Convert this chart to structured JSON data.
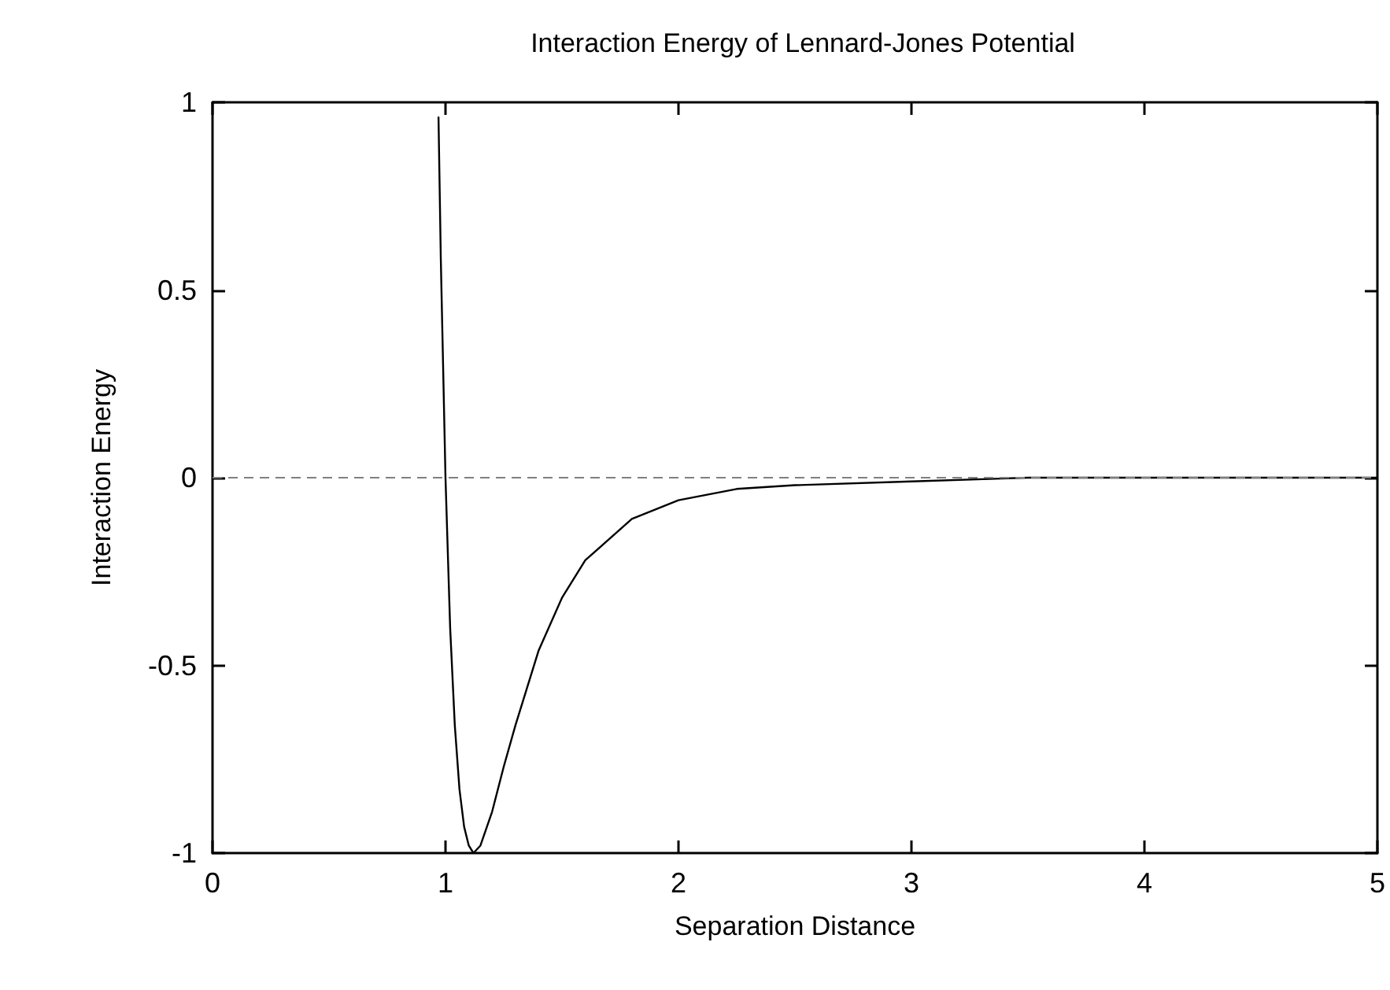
{
  "chart_data": {
    "type": "line",
    "title": "Interaction Energy of Lennard-Jones Potential",
    "xlabel": "Separation Distance",
    "ylabel": "Interaction Energy",
    "series": [
      {
        "color": "#000000",
        "x": [
          0.97,
          0.98,
          1.0,
          1.02,
          1.04,
          1.06,
          1.08,
          1.1,
          1.12,
          1.15,
          1.2,
          1.25,
          1.3,
          1.4,
          1.5,
          1.6,
          1.8,
          2.0,
          2.25,
          2.5,
          3.0,
          3.5,
          4.0,
          5.0
        ],
        "values": [
          0.96,
          0.58,
          0,
          -0.4,
          -0.66,
          -0.83,
          -0.93,
          -0.98,
          -1.0,
          -0.98,
          -0.89,
          -0.77,
          -0.66,
          -0.46,
          -0.32,
          -0.22,
          -0.11,
          -0.06,
          -0.03,
          -0.02,
          -0.01,
          0,
          0,
          0
        ]
      }
    ],
    "xlim": [
      0,
      5
    ],
    "xticks": [
      0,
      1,
      2,
      3,
      4,
      5
    ],
    "ylim": [
      -1,
      1
    ],
    "yticks": [
      -1,
      -0.5,
      0,
      0.5,
      1
    ],
    "ref_lines": [
      {
        "axis": "y",
        "value": 0,
        "color": "#808080",
        "line_style": "dashed"
      }
    ],
    "marker": "none",
    "line_style": "solid"
  }
}
